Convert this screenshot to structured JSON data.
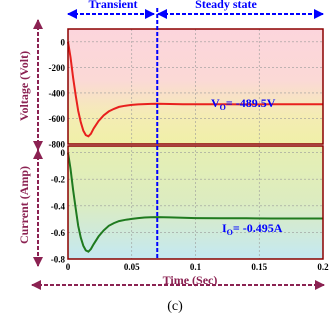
{
  "chart_data": [
    {
      "type": "line",
      "title": "",
      "xlabel": "",
      "ylabel": "Voltage (Volt)",
      "xlim": [
        0,
        0.2
      ],
      "ylim": [
        -800,
        100
      ],
      "yticks": [
        0,
        -200,
        -400,
        -600,
        -800
      ],
      "ytick_labels": [
        "0",
        "-200",
        "-400",
        "-600",
        "-800"
      ],
      "grid": true,
      "annotation": "V",
      "annotation_sub": "O",
      "annotation_value": "= -489.5V",
      "series": [
        {
          "color": "#e8201e",
          "x": [
            0,
            0.002,
            0.004,
            0.006,
            0.008,
            0.01,
            0.012,
            0.014,
            0.016,
            0.018,
            0.02,
            0.024,
            0.028,
            0.032,
            0.036,
            0.04,
            0.045,
            0.05,
            0.055,
            0.06,
            0.065,
            0.07,
            0.08,
            0.09,
            0.1,
            0.12,
            0.14,
            0.16,
            0.18,
            0.2
          ],
          "y": [
            0,
            -120,
            -280,
            -420,
            -540,
            -630,
            -695,
            -730,
            -740,
            -720,
            -680,
            -620,
            -575,
            -545,
            -525,
            -510,
            -500,
            -494,
            -490,
            -488,
            -486,
            -485,
            -487,
            -489,
            -489.5,
            -489,
            -490,
            -489.5,
            -489.5,
            -489.5
          ]
        }
      ]
    },
    {
      "type": "line",
      "title": "",
      "xlabel": "Time (Sec)",
      "ylabel": "Current (Amp)",
      "xlim": [
        0,
        0.2
      ],
      "ylim": [
        -0.8,
        0.05
      ],
      "yticks": [
        0,
        -0.2,
        -0.4,
        -0.6,
        -0.8
      ],
      "ytick_labels": [
        "0",
        "-0.2",
        "-0.4",
        "-0.6",
        "-0.8"
      ],
      "xticks": [
        0,
        0.05,
        0.1,
        0.15,
        0.2
      ],
      "xtick_labels": [
        "0",
        "0.05",
        "0.1",
        "0.15",
        "0.2"
      ],
      "grid": true,
      "annotation": "I",
      "annotation_sub": "O",
      "annotation_value": "= -0.495A",
      "series": [
        {
          "color": "#1f7a1f",
          "x": [
            0,
            0.002,
            0.004,
            0.006,
            0.008,
            0.01,
            0.012,
            0.014,
            0.016,
            0.018,
            0.02,
            0.024,
            0.028,
            0.032,
            0.036,
            0.04,
            0.045,
            0.05,
            0.055,
            0.06,
            0.065,
            0.07,
            0.08,
            0.09,
            0.1,
            0.12,
            0.14,
            0.16,
            0.18,
            0.2
          ],
          "y": [
            0,
            -0.12,
            -0.28,
            -0.42,
            -0.55,
            -0.64,
            -0.7,
            -0.735,
            -0.745,
            -0.725,
            -0.69,
            -0.63,
            -0.585,
            -0.55,
            -0.53,
            -0.515,
            -0.505,
            -0.498,
            -0.492,
            -0.488,
            -0.486,
            -0.485,
            -0.487,
            -0.49,
            -0.492,
            -0.493,
            -0.494,
            -0.495,
            -0.495,
            -0.495
          ]
        }
      ]
    }
  ],
  "regions": {
    "transient_label": "Transient",
    "steady_label": "Steady state",
    "boundary_x": 0.07
  },
  "caption": "(c)",
  "colors": {
    "frame": "#8b0000",
    "axis_arrow": "#8b2252",
    "region_arrow": "#0000ff",
    "boundary": "#0000ff",
    "voltage_bg_top": "#fcd5dc",
    "voltage_bg_bottom": "#f0f0a8",
    "current_bg_top": "#e6efb2",
    "current_bg_bottom": "#c4e8f2",
    "grid": "#9a9a9a"
  }
}
